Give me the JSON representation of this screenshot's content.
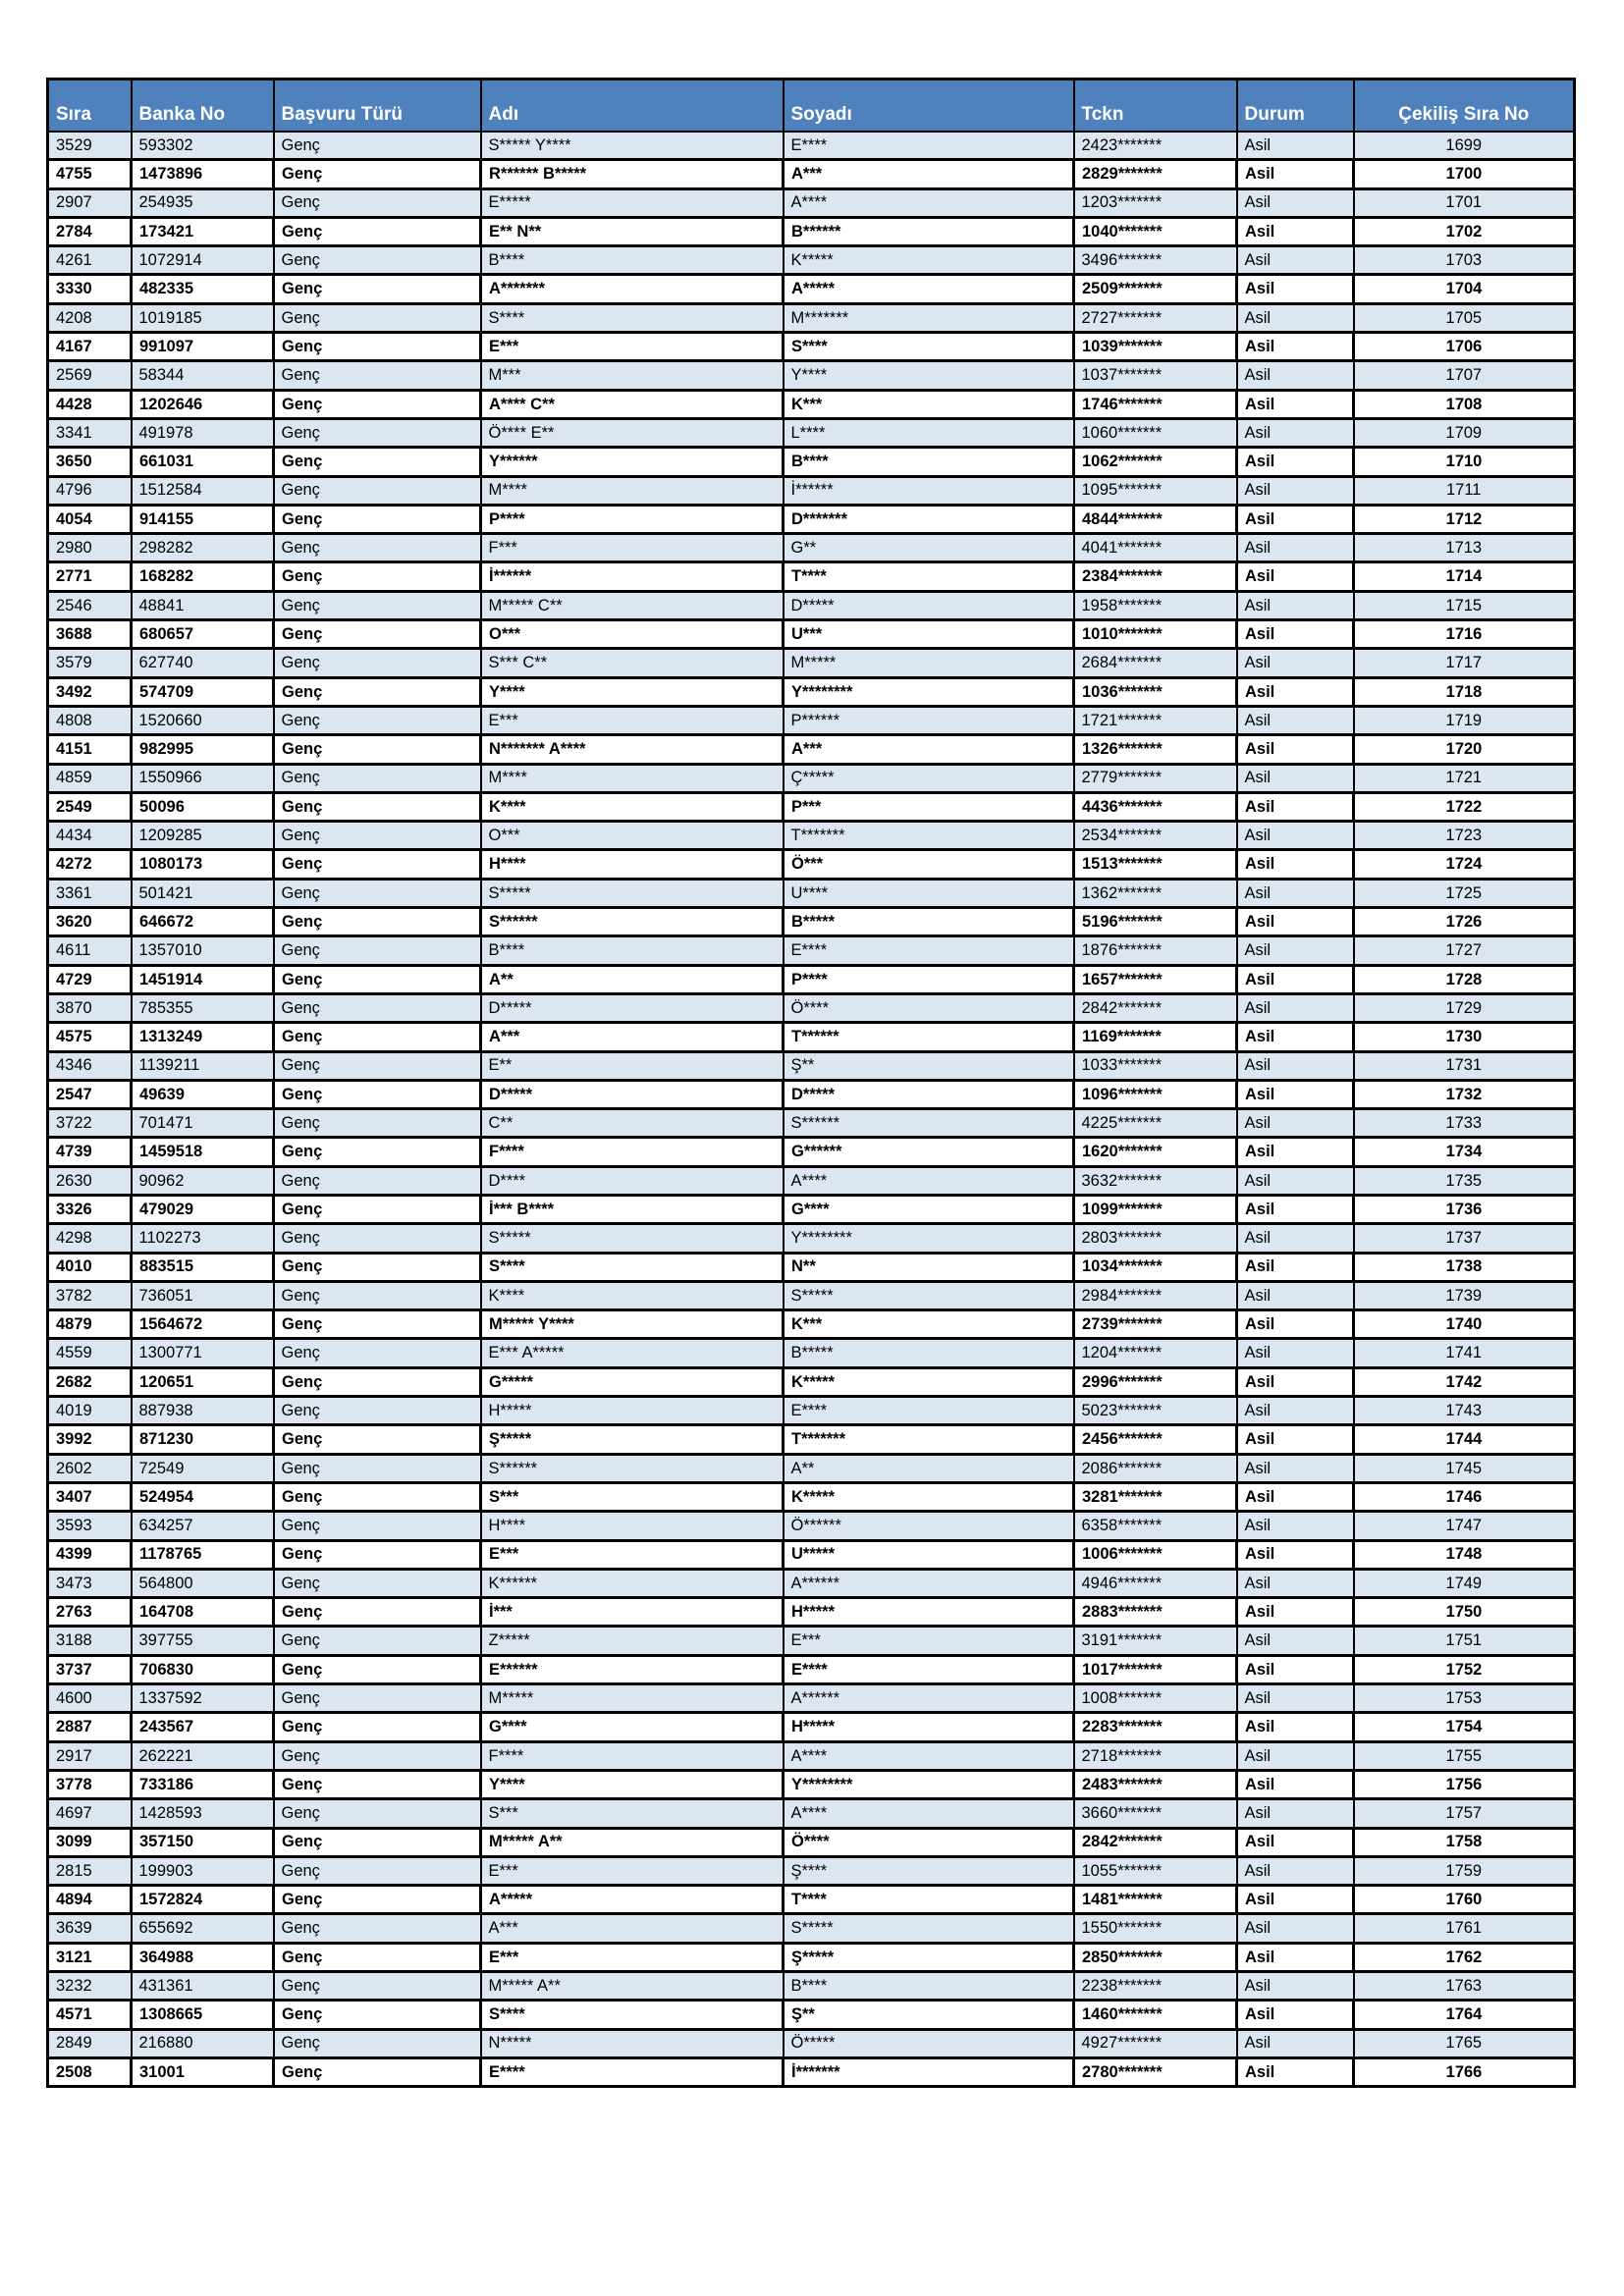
{
  "colors": {
    "header_bg": "#4F81BD",
    "header_text": "#FFFFFF",
    "row_alt_bg": "#DCE6F1",
    "row_bg": "#FFFFFF",
    "border": "#000000"
  },
  "table": {
    "columns": [
      {
        "key": "sira",
        "label": "Sıra",
        "align": "left"
      },
      {
        "key": "banka_no",
        "label": "Banka No",
        "align": "left"
      },
      {
        "key": "basvuru_turu",
        "label": "Başvuru Türü",
        "align": "left"
      },
      {
        "key": "adi",
        "label": "Adı",
        "align": "left"
      },
      {
        "key": "soyadi",
        "label": "Soyadı",
        "align": "left"
      },
      {
        "key": "tckn",
        "label": "Tckn",
        "align": "left"
      },
      {
        "key": "durum",
        "label": "Durum",
        "align": "left"
      },
      {
        "key": "cekilis_sira_no",
        "label": "Çekiliş Sıra No",
        "align": "center"
      }
    ],
    "rows": [
      [
        "3529",
        "593302",
        "Genç",
        "S***** Y****",
        "E****",
        "2423*******",
        "Asil",
        "1699"
      ],
      [
        "4755",
        "1473896",
        "Genç",
        "R****** B*****",
        "A***",
        "2829*******",
        "Asil",
        "1700"
      ],
      [
        "2907",
        "254935",
        "Genç",
        "E*****",
        "A****",
        "1203*******",
        "Asil",
        "1701"
      ],
      [
        "2784",
        "173421",
        "Genç",
        "E** N**",
        "B******",
        "1040*******",
        "Asil",
        "1702"
      ],
      [
        "4261",
        "1072914",
        "Genç",
        "B****",
        "K*****",
        "3496*******",
        "Asil",
        "1703"
      ],
      [
        "3330",
        "482335",
        "Genç",
        "A*******",
        "A*****",
        "2509*******",
        "Asil",
        "1704"
      ],
      [
        "4208",
        "1019185",
        "Genç",
        "S****",
        "M*******",
        "2727*******",
        "Asil",
        "1705"
      ],
      [
        "4167",
        "991097",
        "Genç",
        "E***",
        "S****",
        "1039*******",
        "Asil",
        "1706"
      ],
      [
        "2569",
        "58344",
        "Genç",
        "M***",
        "Y****",
        "1037*******",
        "Asil",
        "1707"
      ],
      [
        "4428",
        "1202646",
        "Genç",
        "A**** C**",
        "K***",
        "1746*******",
        "Asil",
        "1708"
      ],
      [
        "3341",
        "491978",
        "Genç",
        "Ö**** E**",
        "L****",
        "1060*******",
        "Asil",
        "1709"
      ],
      [
        "3650",
        "661031",
        "Genç",
        "Y******",
        "B****",
        "1062*******",
        "Asil",
        "1710"
      ],
      [
        "4796",
        "1512584",
        "Genç",
        "M****",
        "İ******",
        "1095*******",
        "Asil",
        "1711"
      ],
      [
        "4054",
        "914155",
        "Genç",
        "P****",
        "D*******",
        "4844*******",
        "Asil",
        "1712"
      ],
      [
        "2980",
        "298282",
        "Genç",
        "F***",
        "G**",
        "4041*******",
        "Asil",
        "1713"
      ],
      [
        "2771",
        "168282",
        "Genç",
        "İ******",
        "T****",
        "2384*******",
        "Asil",
        "1714"
      ],
      [
        "2546",
        "48841",
        "Genç",
        "M***** C**",
        "D*****",
        "1958*******",
        "Asil",
        "1715"
      ],
      [
        "3688",
        "680657",
        "Genç",
        "O***",
        "U***",
        "1010*******",
        "Asil",
        "1716"
      ],
      [
        "3579",
        "627740",
        "Genç",
        "S*** C**",
        "M*****",
        "2684*******",
        "Asil",
        "1717"
      ],
      [
        "3492",
        "574709",
        "Genç",
        "Y****",
        "Y********",
        "1036*******",
        "Asil",
        "1718"
      ],
      [
        "4808",
        "1520660",
        "Genç",
        "E***",
        "P******",
        "1721*******",
        "Asil",
        "1719"
      ],
      [
        "4151",
        "982995",
        "Genç",
        "N******* A****",
        "A***",
        "1326*******",
        "Asil",
        "1720"
      ],
      [
        "4859",
        "1550966",
        "Genç",
        "M****",
        "Ç*****",
        "2779*******",
        "Asil",
        "1721"
      ],
      [
        "2549",
        "50096",
        "Genç",
        "K****",
        "P***",
        "4436*******",
        "Asil",
        "1722"
      ],
      [
        "4434",
        "1209285",
        "Genç",
        "O***",
        "T*******",
        "2534*******",
        "Asil",
        "1723"
      ],
      [
        "4272",
        "1080173",
        "Genç",
        "H****",
        "Ö***",
        "1513*******",
        "Asil",
        "1724"
      ],
      [
        "3361",
        "501421",
        "Genç",
        "S*****",
        "U****",
        "1362*******",
        "Asil",
        "1725"
      ],
      [
        "3620",
        "646672",
        "Genç",
        "S******",
        "B*****",
        "5196*******",
        "Asil",
        "1726"
      ],
      [
        "4611",
        "1357010",
        "Genç",
        "B****",
        "E****",
        "1876*******",
        "Asil",
        "1727"
      ],
      [
        "4729",
        "1451914",
        "Genç",
        "A**",
        "P****",
        "1657*******",
        "Asil",
        "1728"
      ],
      [
        "3870",
        "785355",
        "Genç",
        "D*****",
        "Ö****",
        "2842*******",
        "Asil",
        "1729"
      ],
      [
        "4575",
        "1313249",
        "Genç",
        "A***",
        "T******",
        "1169*******",
        "Asil",
        "1730"
      ],
      [
        "4346",
        "1139211",
        "Genç",
        "E**",
        "Ş**",
        "1033*******",
        "Asil",
        "1731"
      ],
      [
        "2547",
        "49639",
        "Genç",
        "D*****",
        "D*****",
        "1096*******",
        "Asil",
        "1732"
      ],
      [
        "3722",
        "701471",
        "Genç",
        "C**",
        "S******",
        "4225*******",
        "Asil",
        "1733"
      ],
      [
        "4739",
        "1459518",
        "Genç",
        "F****",
        "G******",
        "1620*******",
        "Asil",
        "1734"
      ],
      [
        "2630",
        "90962",
        "Genç",
        "D****",
        "A****",
        "3632*******",
        "Asil",
        "1735"
      ],
      [
        "3326",
        "479029",
        "Genç",
        "İ*** B****",
        "G****",
        "1099*******",
        "Asil",
        "1736"
      ],
      [
        "4298",
        "1102273",
        "Genç",
        "S*****",
        "Y********",
        "2803*******",
        "Asil",
        "1737"
      ],
      [
        "4010",
        "883515",
        "Genç",
        "S****",
        "N**",
        "1034*******",
        "Asil",
        "1738"
      ],
      [
        "3782",
        "736051",
        "Genç",
        "K****",
        "S*****",
        "2984*******",
        "Asil",
        "1739"
      ],
      [
        "4879",
        "1564672",
        "Genç",
        "M***** Y****",
        "K***",
        "2739*******",
        "Asil",
        "1740"
      ],
      [
        "4559",
        "1300771",
        "Genç",
        "E*** A*****",
        "B*****",
        "1204*******",
        "Asil",
        "1741"
      ],
      [
        "2682",
        "120651",
        "Genç",
        "G*****",
        "K*****",
        "2996*******",
        "Asil",
        "1742"
      ],
      [
        "4019",
        "887938",
        "Genç",
        "H*****",
        "E****",
        "5023*******",
        "Asil",
        "1743"
      ],
      [
        "3992",
        "871230",
        "Genç",
        "Ş*****",
        "T*******",
        "2456*******",
        "Asil",
        "1744"
      ],
      [
        "2602",
        "72549",
        "Genç",
        "S******",
        "A**",
        "2086*******",
        "Asil",
        "1745"
      ],
      [
        "3407",
        "524954",
        "Genç",
        "S***",
        "K*****",
        "3281*******",
        "Asil",
        "1746"
      ],
      [
        "3593",
        "634257",
        "Genç",
        "H****",
        "Ö******",
        "6358*******",
        "Asil",
        "1747"
      ],
      [
        "4399",
        "1178765",
        "Genç",
        "E***",
        "U*****",
        "1006*******",
        "Asil",
        "1748"
      ],
      [
        "3473",
        "564800",
        "Genç",
        "K******",
        "A******",
        "4946*******",
        "Asil",
        "1749"
      ],
      [
        "2763",
        "164708",
        "Genç",
        "İ***",
        "H*****",
        "2883*******",
        "Asil",
        "1750"
      ],
      [
        "3188",
        "397755",
        "Genç",
        "Z*****",
        "E***",
        "3191*******",
        "Asil",
        "1751"
      ],
      [
        "3737",
        "706830",
        "Genç",
        "E******",
        "E****",
        "1017*******",
        "Asil",
        "1752"
      ],
      [
        "4600",
        "1337592",
        "Genç",
        "M*****",
        "A******",
        "1008*******",
        "Asil",
        "1753"
      ],
      [
        "2887",
        "243567",
        "Genç",
        "G****",
        "H*****",
        "2283*******",
        "Asil",
        "1754"
      ],
      [
        "2917",
        "262221",
        "Genç",
        "F****",
        "A****",
        "2718*******",
        "Asil",
        "1755"
      ],
      [
        "3778",
        "733186",
        "Genç",
        "Y****",
        "Y********",
        "2483*******",
        "Asil",
        "1756"
      ],
      [
        "4697",
        "1428593",
        "Genç",
        "S***",
        "A****",
        "3660*******",
        "Asil",
        "1757"
      ],
      [
        "3099",
        "357150",
        "Genç",
        "M***** A**",
        "Ö****",
        "2842*******",
        "Asil",
        "1758"
      ],
      [
        "2815",
        "199903",
        "Genç",
        "E***",
        "Ş****",
        "1055*******",
        "Asil",
        "1759"
      ],
      [
        "4894",
        "1572824",
        "Genç",
        "A*****",
        "T****",
        "1481*******",
        "Asil",
        "1760"
      ],
      [
        "3639",
        "655692",
        "Genç",
        "A***",
        "S*****",
        "1550*******",
        "Asil",
        "1761"
      ],
      [
        "3121",
        "364988",
        "Genç",
        "E***",
        "Ş*****",
        "2850*******",
        "Asil",
        "1762"
      ],
      [
        "3232",
        "431361",
        "Genç",
        "M***** A**",
        "B****",
        "2238*******",
        "Asil",
        "1763"
      ],
      [
        "4571",
        "1308665",
        "Genç",
        "S****",
        "Ş**",
        "1460*******",
        "Asil",
        "1764"
      ],
      [
        "2849",
        "216880",
        "Genç",
        "N*****",
        "Ö*****",
        "4927*******",
        "Asil",
        "1765"
      ],
      [
        "2508",
        "31001",
        "Genç",
        "E****",
        "İ*******",
        "2780*******",
        "Asil",
        "1766"
      ]
    ]
  }
}
